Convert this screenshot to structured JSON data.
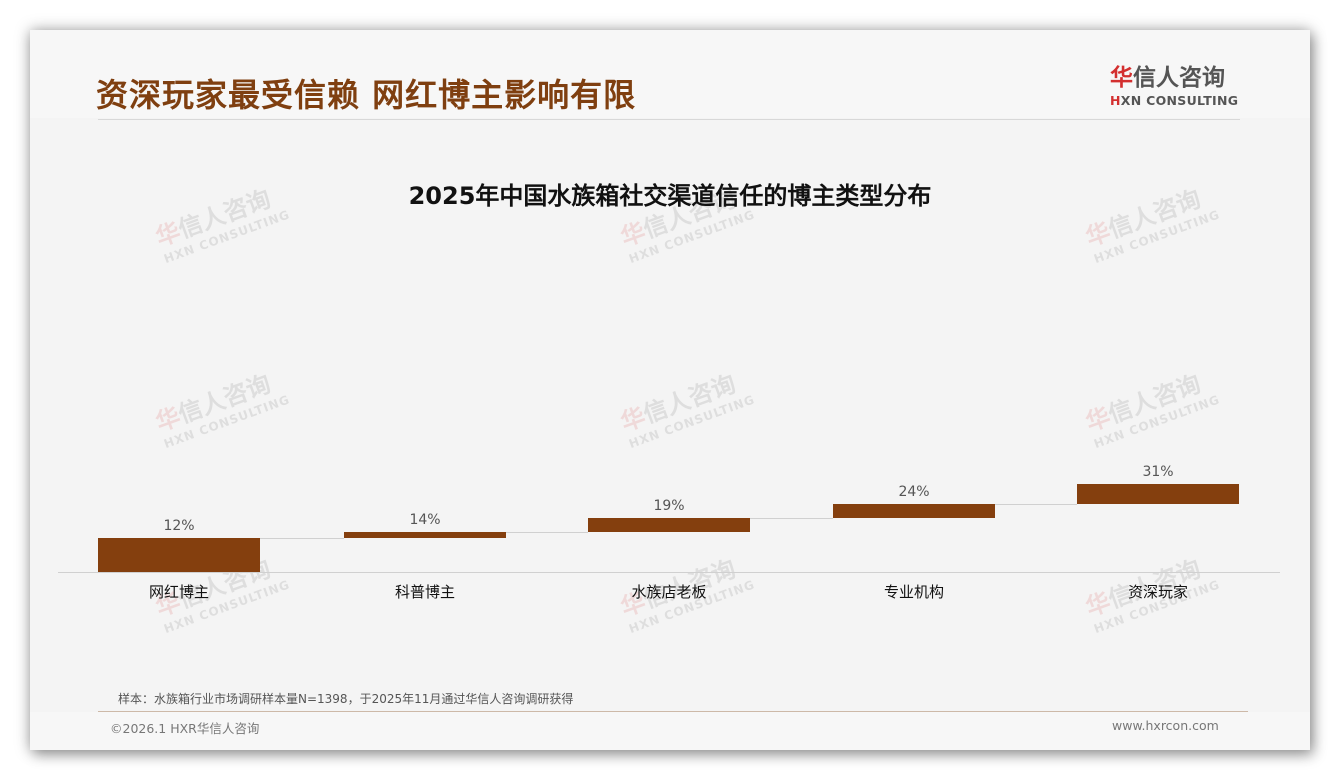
{
  "header": {
    "title": "资深玩家最受信赖 网红博主影响有限",
    "logo": {
      "cn_mark": "华",
      "cn_rest": "信人咨询",
      "en_mark": "H",
      "en_rest": "XN CONSULTING"
    }
  },
  "watermark": {
    "cn_mark": "华",
    "cn_rest": "信人咨询",
    "en": "HXN CONSULTING"
  },
  "chart_data": {
    "type": "bar",
    "subtype": "floating-step (waterfall-style) bars",
    "title": "2025年中国水族箱社交渠道信任的博主类型分布",
    "categories": [
      "网红博主",
      "科普博主",
      "水族店老板",
      "专业机构",
      "资深玩家"
    ],
    "values": [
      12,
      14,
      19,
      24,
      31
    ],
    "value_labels": [
      "12%",
      "14%",
      "19%",
      "24%",
      "31%"
    ],
    "unit": "%",
    "xlabel": "",
    "ylabel": "",
    "grid": false,
    "legend": null,
    "bar_color": "#843f0e"
  },
  "footer": {
    "source": "样本：水族箱行业市场调研样本量N=1398，于2025年11月通过华信人咨询调研获得",
    "copyright": "©2026.1 HXR华信人咨询",
    "website": "www.hxrcon.com"
  }
}
